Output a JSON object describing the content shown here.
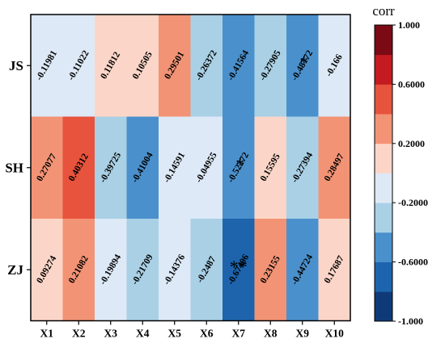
{
  "chart_data": {
    "type": "heatmap",
    "rows": [
      "JS",
      "SH",
      "ZJ"
    ],
    "columns": [
      "X1",
      "X2",
      "X3",
      "X4",
      "X5",
      "X6",
      "X7",
      "X8",
      "X9",
      "X10"
    ],
    "values": [
      [
        -0.11981,
        -0.11022,
        0.11812,
        0.10505,
        0.29501,
        -0.26372,
        -0.41564,
        -0.27905,
        -0.48772,
        -0.166
      ],
      [
        0.27077,
        0.40312,
        -0.39725,
        -0.41004,
        -0.14591,
        -0.04955,
        -0.52272,
        0.15595,
        -0.27394,
        0.28497
      ],
      [
        0.09274,
        0.21082,
        -0.19894,
        -0.21709,
        -0.14376,
        -0.2487,
        -0.67406,
        0.23155,
        -0.44724,
        0.17687
      ]
    ],
    "value_labels": [
      [
        "-0.11981",
        "-0.11022",
        "0.11812",
        "0.10505",
        "0.29501",
        "-0.26372",
        "-0.41564",
        "-0.27905",
        "-0.48772",
        "-0.166"
      ],
      [
        "0.27077",
        "0.40312",
        "-0.39725",
        "-0.41004",
        "-0.14591",
        "-0.04955",
        "-0.52272",
        "0.15595",
        "-0.27394",
        "0.28497"
      ],
      [
        "0.09274",
        "0.21082",
        "-0.19894",
        "-0.21709",
        "-0.14376",
        "-0.2487",
        "-0.67406",
        "0.23155",
        "-0.44724",
        "0.17687"
      ]
    ],
    "significance": [
      [
        "",
        "",
        "",
        "",
        "",
        "",
        "",
        "",
        "*",
        ""
      ],
      [
        "",
        "",
        "",
        "",
        "",
        "",
        "*",
        "",
        "",
        ""
      ],
      [
        "",
        "",
        "",
        "",
        "",
        "",
        "**",
        "",
        "",
        ""
      ]
    ],
    "colorbar": {
      "title": "corr",
      "range": [
        -1.0,
        1.0
      ],
      "tick_values": [
        1.0,
        0.6,
        0.2,
        -0.2,
        -0.6,
        -1.0
      ],
      "tick_labels": [
        "1.000",
        "0.6000",
        "0.2000",
        "-0.2000",
        "-0.6000",
        "-1.000"
      ],
      "bins": [
        {
          "from": -1.0,
          "to": -0.8,
          "color": "#0f3a78"
        },
        {
          "from": -0.8,
          "to": -0.6,
          "color": "#1d64ad"
        },
        {
          "from": -0.6,
          "to": -0.4,
          "color": "#4a90cc"
        },
        {
          "from": -0.4,
          "to": -0.2,
          "color": "#a9d0e5"
        },
        {
          "from": -0.2,
          "to": 0.0,
          "color": "#dde9f6"
        },
        {
          "from": 0.0,
          "to": 0.2,
          "color": "#fbd6c8"
        },
        {
          "from": 0.2,
          "to": 0.4,
          "color": "#f39375"
        },
        {
          "from": 0.4,
          "to": 0.6,
          "color": "#e7533c"
        },
        {
          "from": 0.6,
          "to": 0.8,
          "color": "#c41a21"
        },
        {
          "from": 0.8,
          "to": 1.0,
          "color": "#7b0a14"
        }
      ]
    }
  }
}
